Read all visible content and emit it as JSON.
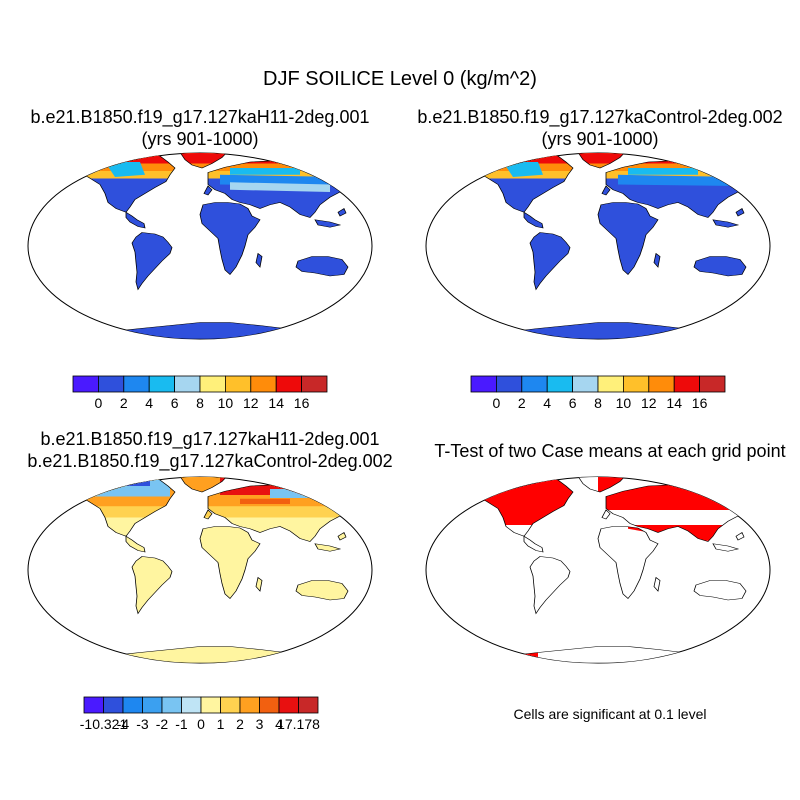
{
  "title": "DJF SOILICE Level 0 (kg/m^2)",
  "panels": [
    {
      "id": "case1",
      "title_lines": [
        "b.e21.B1850.f19_g17.127kaH11-2deg.001",
        "(yrs 901-1000)"
      ]
    },
    {
      "id": "case2",
      "title_lines": [
        "b.e21.B1850.f19_g17.127kaControl-2deg.002",
        "(yrs 901-1000)"
      ]
    },
    {
      "id": "diff",
      "title_lines": [
        "b.e21.B1850.f19_g17.127kaH11-2deg.001",
        "b.e21.B1850.f19_g17.127kaControl-2deg.002"
      ]
    },
    {
      "id": "ttest",
      "title_lines": [
        "T-Test of two Case means at each grid point"
      ]
    }
  ],
  "significance_note": "Cells are significant at 0.1 level",
  "colorbars": {
    "cases": {
      "colors": [
        "#4a1aff",
        "#2f50dc",
        "#1e87f0",
        "#19bbf0",
        "#a6d6f0",
        "#fff07a",
        "#ffc02a",
        "#ff8c0a",
        "#ee0a0a",
        "#c82828"
      ],
      "labels": [
        "0",
        "2",
        "4",
        "6",
        "8",
        "10",
        "12",
        "14",
        "16"
      ]
    },
    "diff": {
      "colors": [
        "#4a1aff",
        "#2f50dc",
        "#1e87f0",
        "#3ba0f0",
        "#79c4f2",
        "#bfe4f5",
        "#fff5a0",
        "#ffd250",
        "#ffa020",
        "#f26010",
        "#e81010",
        "#c82828"
      ],
      "labels": [
        "-10.321",
        "-4",
        "-3",
        "-2",
        "-1",
        "0",
        "1",
        "2",
        "3",
        "4",
        "17.178"
      ]
    }
  },
  "chart_data": [
    {
      "type": "heatmap",
      "title": "b.e21.B1850.f19_g17.127kaH11-2deg.001 (yrs 901-1000)",
      "variable": "SOILICE",
      "level": "0",
      "units": "kg/m^2",
      "season": "DJF",
      "contour_levels": [
        0,
        2,
        4,
        6,
        8,
        10,
        12,
        14,
        16
      ]
    },
    {
      "type": "heatmap",
      "title": "b.e21.B1850.f19_g17.127kaControl-2deg.002 (yrs 901-1000)",
      "variable": "SOILICE",
      "level": "0",
      "units": "kg/m^2",
      "season": "DJF",
      "contour_levels": [
        0,
        2,
        4,
        6,
        8,
        10,
        12,
        14,
        16
      ]
    },
    {
      "type": "heatmap",
      "title": "b.e21.B1850.f19_g17.127kaH11-2deg.001 - b.e21.B1850.f19_g17.127kaControl-2deg.002",
      "contour_levels": [
        -10.321,
        -4,
        -3,
        -2,
        -1,
        0,
        1,
        2,
        3,
        4,
        17.178
      ]
    },
    {
      "type": "heatmap",
      "title": "T-Test of two Case means at each grid point",
      "significance_level": 0.1
    }
  ]
}
